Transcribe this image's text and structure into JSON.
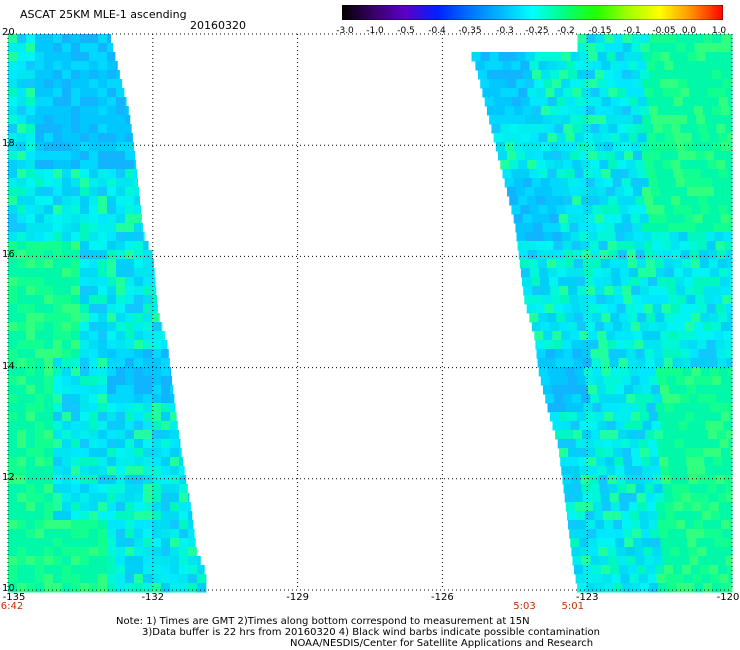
{
  "header": {
    "title": "ASCAT 25KM MLE-1 ascending",
    "date": "20160320"
  },
  "colorbar": {
    "labels": [
      "-3.0",
      "-1.0",
      "-0.5",
      "-0.4",
      "-0.35",
      "-0.3",
      "-0.25",
      "-0.2",
      "-0.15",
      "-0.1",
      "-0.05",
      "0.0",
      "1.0"
    ],
    "colors": [
      "#000000",
      "#3a0068",
      "#5a00c8",
      "#0020ff",
      "#0070ff",
      "#00b8ff",
      "#00ffff",
      "#00ff80",
      "#20ff00",
      "#a0ff00",
      "#ffff00",
      "#ff9000",
      "#ff0000"
    ]
  },
  "map": {
    "lon_range": [
      -135,
      -120
    ],
    "lat_range": [
      10,
      20
    ],
    "y_ticks": [
      {
        "value": 20,
        "label": "20"
      },
      {
        "value": 18,
        "label": "18"
      },
      {
        "value": 16,
        "label": "16"
      },
      {
        "value": 14,
        "label": "14"
      },
      {
        "value": 12,
        "label": "12"
      },
      {
        "value": 10,
        "label": "10"
      }
    ],
    "x_ticks": [
      {
        "value": -135,
        "label": "-135"
      },
      {
        "value": -132,
        "label": "-132"
      },
      {
        "value": -129,
        "label": "-129"
      },
      {
        "value": -126,
        "label": "-126"
      },
      {
        "value": -123,
        "label": "-123"
      },
      {
        "value": -120,
        "label": "-120"
      }
    ],
    "times": [
      {
        "lon": -135,
        "label": "6:42"
      },
      {
        "lon": -124.3,
        "label": "5:03"
      },
      {
        "lon": -123.3,
        "label": "5:01"
      }
    ],
    "swaths": [
      {
        "name": "west",
        "left_lon": -135,
        "right_edge": [
          {
            "lat": 20,
            "lon": -132.9
          },
          {
            "lat": 19.3,
            "lon": -132.7
          },
          {
            "lat": 18.6,
            "lon": -132.5
          },
          {
            "lat": 18.0,
            "lon": -132.4
          },
          {
            "lat": 17.2,
            "lon": -132.3
          },
          {
            "lat": 16.4,
            "lon": -132.2
          },
          {
            "lat": 16.0,
            "lon": -132.0
          },
          {
            "lat": 15.0,
            "lon": -131.9
          },
          {
            "lat": 14.4,
            "lon": -131.7
          },
          {
            "lat": 13.7,
            "lon": -131.6
          },
          {
            "lat": 13.0,
            "lon": -131.5
          },
          {
            "lat": 12.4,
            "lon": -131.4
          },
          {
            "lat": 11.9,
            "lon": -131.3
          },
          {
            "lat": 11.4,
            "lon": -131.2
          },
          {
            "lat": 10.7,
            "lon": -131.1
          },
          {
            "lat": 10.3,
            "lon": -130.9
          },
          {
            "lat": 10,
            "lon": -130.9
          }
        ]
      },
      {
        "name": "east",
        "right_lon": -120,
        "left_edge": [
          {
            "lat": 19.6,
            "lon": -125.4
          },
          {
            "lat": 19.4,
            "lon": -125.3
          },
          {
            "lat": 18.7,
            "lon": -125.1
          },
          {
            "lat": 18.0,
            "lon": -124.9
          },
          {
            "lat": 17.3,
            "lon": -124.7
          },
          {
            "lat": 16.6,
            "lon": -124.5
          },
          {
            "lat": 15.9,
            "lon": -124.4
          },
          {
            "lat": 15.2,
            "lon": -124.3
          },
          {
            "lat": 14.6,
            "lon": -124.1
          },
          {
            "lat": 13.9,
            "lon": -124.0
          },
          {
            "lat": 13.2,
            "lon": -123.8
          },
          {
            "lat": 12.6,
            "lon": -123.6
          },
          {
            "lat": 11.9,
            "lon": -123.5
          },
          {
            "lat": 11.2,
            "lon": -123.4
          },
          {
            "lat": 10.5,
            "lon": -123.3
          },
          {
            "lat": 10,
            "lon": -123.2
          }
        ]
      }
    ]
  },
  "notes": {
    "line1": "Note: 1) Times are GMT 2)Times along bottom correspond to measurement at 15N",
    "line2": "3)Data buffer is 22 hrs from 20160320 4) Black wind barbs indicate possible contamination",
    "line3": "NOAA/NESDIS/Center for Satellite Applications and Research"
  }
}
